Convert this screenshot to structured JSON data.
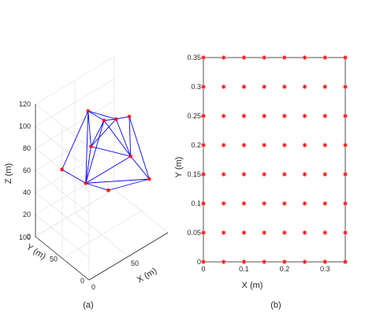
{
  "chart_data": [
    {
      "type": "scatter",
      "subplot_label": "(a)",
      "xlabel": "X (m)",
      "ylabel": "Y (m)",
      "zlabel": "Z (m)",
      "x_ticks": [
        "0",
        "50"
      ],
      "y_ticks": [
        "0",
        "50",
        "100"
      ],
      "z_ticks": [
        "0",
        "20",
        "40",
        "60",
        "80",
        "100",
        "120"
      ],
      "xlim": [
        0,
        100
      ],
      "ylim": [
        0,
        100
      ],
      "zlim": [
        0,
        120
      ],
      "grid": true,
      "mesh_color": "#0000ff",
      "marker_color": "#ff0000",
      "points": [
        {
          "x": 20,
          "y": 80,
          "z": 60
        },
        {
          "x": 60,
          "y": 90,
          "z": 92
        },
        {
          "x": 70,
          "y": 75,
          "z": 85
        },
        {
          "x": 75,
          "y": 60,
          "z": 90
        },
        {
          "x": 85,
          "y": 50,
          "z": 92
        },
        {
          "x": 50,
          "y": 70,
          "z": 72
        },
        {
          "x": 80,
          "y": 40,
          "z": 62
        },
        {
          "x": 40,
          "y": 65,
          "z": 45
        },
        {
          "x": 55,
          "y": 45,
          "z": 40
        },
        {
          "x": 90,
          "y": 20,
          "z": 45
        }
      ],
      "edges": [
        [
          0,
          1
        ],
        [
          0,
          7
        ],
        [
          1,
          2
        ],
        [
          1,
          3
        ],
        [
          1,
          5
        ],
        [
          1,
          7
        ],
        [
          2,
          3
        ],
        [
          2,
          5
        ],
        [
          2,
          6
        ],
        [
          3,
          4
        ],
        [
          3,
          6
        ],
        [
          4,
          6
        ],
        [
          4,
          9
        ],
        [
          5,
          7
        ],
        [
          5,
          6
        ],
        [
          6,
          9
        ],
        [
          7,
          8
        ],
        [
          7,
          9
        ],
        [
          8,
          9
        ],
        [
          6,
          7
        ],
        [
          2,
          7
        ],
        [
          3,
          5
        ]
      ]
    },
    {
      "type": "scatter",
      "subplot_label": "(b)",
      "xlabel": "X (m)",
      "ylabel": "Y (m)",
      "xlim": [
        0,
        0.35
      ],
      "ylim": [
        0,
        0.35
      ],
      "x_ticks": [
        "0",
        "0.1",
        "0.2",
        "0.3"
      ],
      "x_tick_values": [
        0,
        0.1,
        0.2,
        0.3
      ],
      "y_ticks": [
        "0",
        "0.05",
        "0.1",
        "0.15",
        "0.2",
        "0.25",
        "0.3",
        "0.35"
      ],
      "y_tick_values": [
        0,
        0.05,
        0.1,
        0.15,
        0.2,
        0.25,
        0.3,
        0.35
      ],
      "marker_color": "#ff0000",
      "grid_x": [
        0,
        0.05,
        0.1,
        0.15,
        0.2,
        0.25,
        0.3,
        0.35
      ],
      "grid_y": [
        0,
        0.05,
        0.1,
        0.15,
        0.2,
        0.25,
        0.3,
        0.35
      ]
    }
  ]
}
